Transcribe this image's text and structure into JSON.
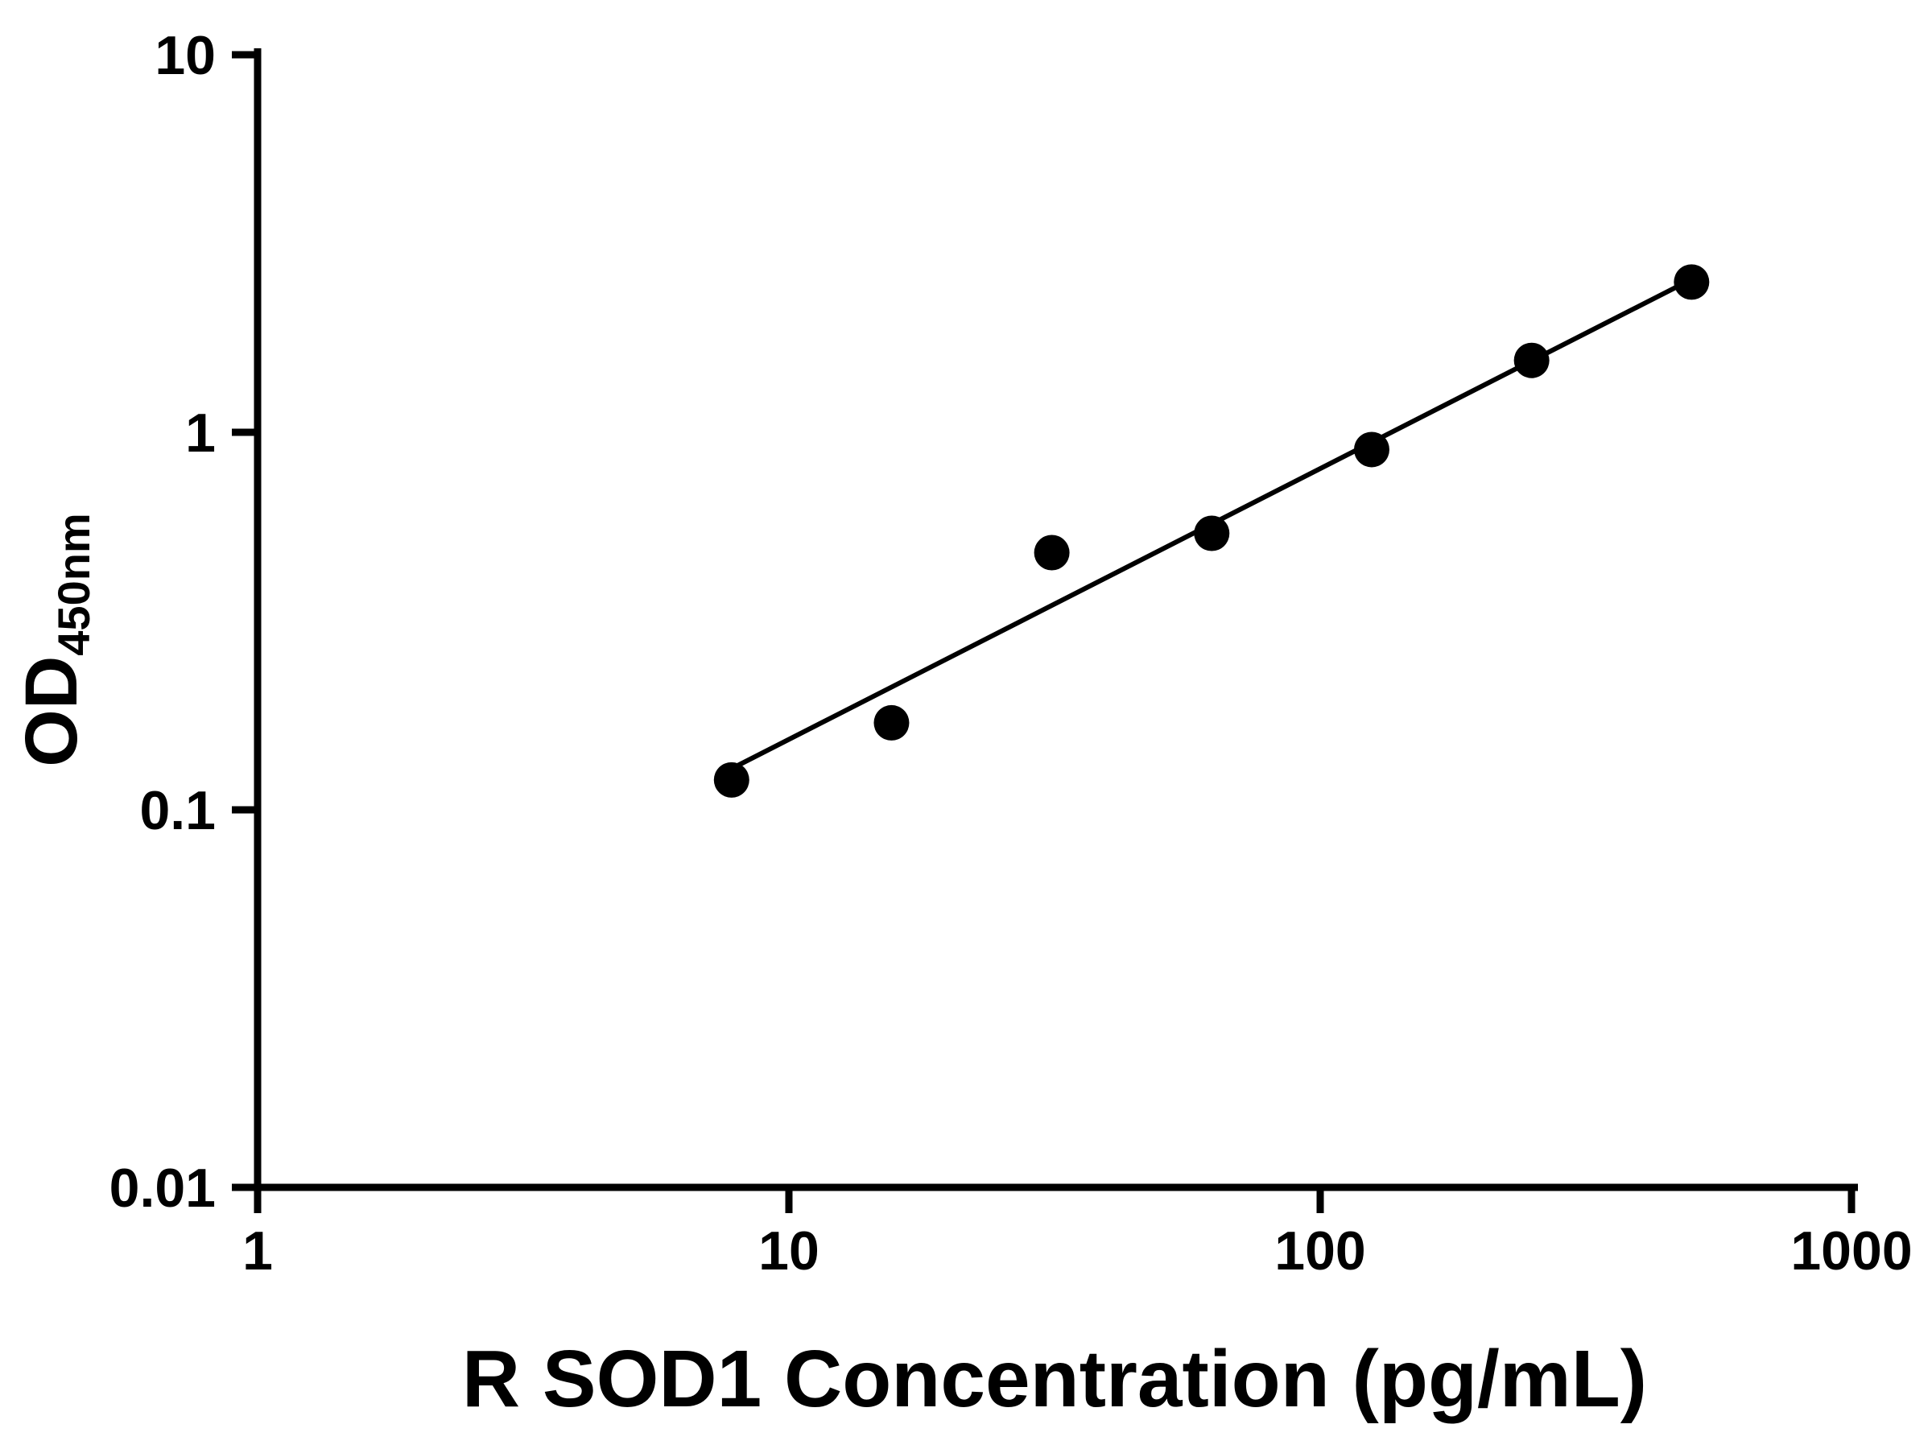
{
  "chart_data": {
    "type": "scatter",
    "title": "",
    "xlabel": "R SOD1 Concentration (pg/mL)",
    "ylabel_main": "OD",
    "ylabel_sub": "450nm",
    "x_scale": "log",
    "y_scale": "log",
    "xlim": [
      1,
      1000
    ],
    "ylim": [
      0.01,
      10
    ],
    "grid": false,
    "legend": null,
    "axis_color": "#000000",
    "marker_color": "#000000",
    "line_color": "#000000",
    "background": "#ffffff",
    "x_ticks": [
      {
        "value": 1,
        "label": "1"
      },
      {
        "value": 10,
        "label": "10"
      },
      {
        "value": 100,
        "label": "100"
      },
      {
        "value": 1000,
        "label": "1000"
      }
    ],
    "y_ticks": [
      {
        "value": 0.01,
        "label": "0.01"
      },
      {
        "value": 0.1,
        "label": "0.1"
      },
      {
        "value": 1,
        "label": "1"
      },
      {
        "value": 10,
        "label": "10"
      }
    ],
    "points": [
      {
        "x": 7.8,
        "y": 0.12
      },
      {
        "x": 15.6,
        "y": 0.17
      },
      {
        "x": 31.25,
        "y": 0.48
      },
      {
        "x": 62.5,
        "y": 0.54
      },
      {
        "x": 125,
        "y": 0.9
      },
      {
        "x": 250,
        "y": 1.55
      },
      {
        "x": 500,
        "y": 2.5
      }
    ],
    "trend_line": {
      "x1": 7.5,
      "y1": 0.125,
      "x2": 505,
      "y2": 2.56
    }
  }
}
